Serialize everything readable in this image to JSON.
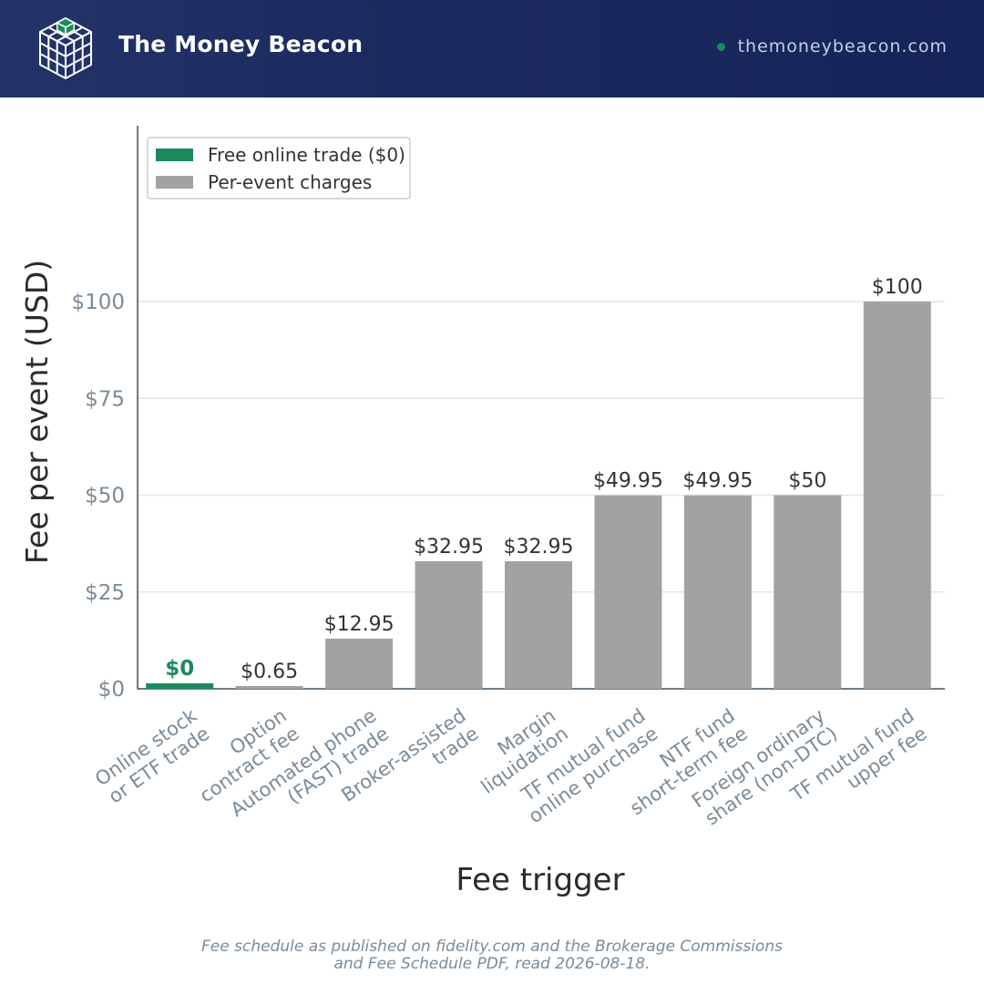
{
  "header": {
    "brand": "The Money Beacon",
    "site": "themoneybeacon.com"
  },
  "colors": {
    "header_bg": "#1b2a5e",
    "free": "#1a8a5c",
    "charge": "#a2a2a2",
    "axis_text": "#7a8b98",
    "site_dot": "#1a8a5c"
  },
  "chart_data": {
    "type": "bar",
    "categories": [
      [
        "Online stock",
        "or ETF trade"
      ],
      [
        "Option",
        "contract fee"
      ],
      [
        "Automated phone",
        "(FAST) trade"
      ],
      [
        "Broker-assisted",
        "trade"
      ],
      [
        "Margin",
        "liquidation"
      ],
      [
        "TF mutual fund",
        "online purchase"
      ],
      [
        "NTF fund",
        "short-term fee"
      ],
      [
        "Foreign ordinary",
        "share (non-DTC)"
      ],
      [
        "TF mutual fund",
        "upper fee"
      ]
    ],
    "values": [
      0,
      0.65,
      12.95,
      32.95,
      32.95,
      49.95,
      49.95,
      50,
      100
    ],
    "value_labels": [
      "$0",
      "$0.65",
      "$12.95",
      "$32.95",
      "$32.95",
      "$49.95",
      "$49.95",
      "$50",
      "$100"
    ],
    "series_class": [
      "free",
      "charge",
      "charge",
      "charge",
      "charge",
      "charge",
      "charge",
      "charge",
      "charge"
    ],
    "legend": [
      {
        "name": "Free online trade ($0)",
        "class": "free"
      },
      {
        "name": "Per-event charges",
        "class": "charge"
      }
    ],
    "legend_position": "top-left",
    "xlabel": "Fee trigger",
    "ylabel": "Fee per event (USD)",
    "yticks": [
      0,
      25,
      50,
      75,
      100
    ],
    "ytick_labels": [
      "$0",
      "$25",
      "$50",
      "$75",
      "$100"
    ],
    "ylim": [
      0,
      100
    ],
    "grid": "horizontal"
  },
  "footer": {
    "line1": "Fee schedule as published on fidelity.com and the Brokerage Commissions",
    "line2": "and Fee Schedule PDF, read 2026-08-18."
  }
}
